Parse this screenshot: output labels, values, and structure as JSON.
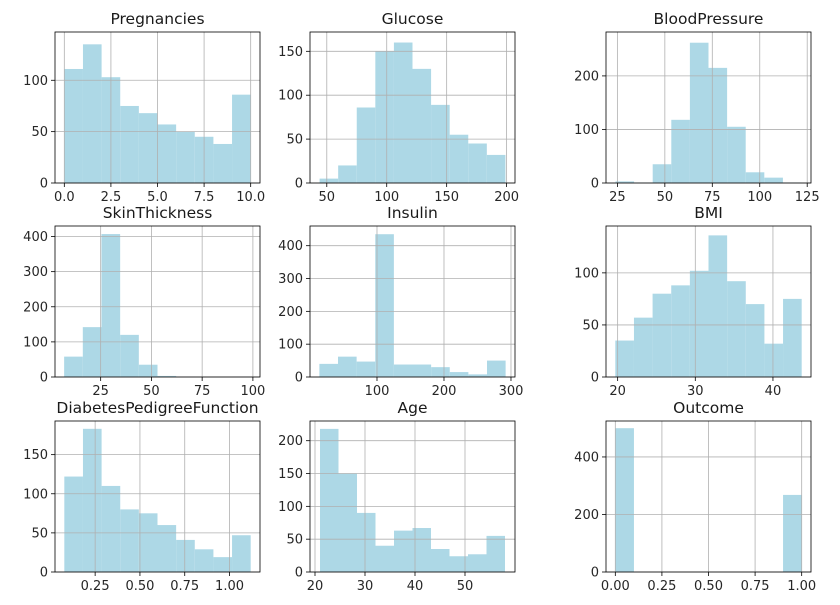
{
  "style": {
    "bar_color": "#add8e6",
    "grid_color": "#b0b0b0",
    "axis_color": "#000000"
  },
  "chart_data": [
    {
      "type": "bar",
      "title": "Pregnancies",
      "grid": true,
      "bins": [
        0,
        1,
        2,
        3,
        4,
        5,
        6,
        7,
        8,
        9,
        10
      ],
      "counts": [
        111,
        135,
        103,
        75,
        68,
        57,
        50,
        45,
        38,
        86
      ],
      "xlim": [
        -0.5,
        10.5
      ],
      "ylim": [
        0,
        147
      ],
      "xticks": [
        0,
        2.5,
        5,
        7.5,
        10
      ],
      "xticklabels": [
        "0.0",
        "2.5",
        "5.0",
        "7.5",
        "10.0"
      ],
      "yticks": [
        0,
        50,
        100
      ],
      "yticklabels": [
        "0",
        "50",
        "100"
      ]
    },
    {
      "type": "bar",
      "title": "Glucose",
      "grid": true,
      "bins": [
        44,
        59.5,
        75,
        90.5,
        106,
        121.5,
        137,
        152.5,
        168,
        183.5,
        199
      ],
      "counts": [
        5,
        20,
        86,
        150,
        160,
        130,
        89,
        55,
        45,
        32
      ],
      "xlim": [
        36,
        207
      ],
      "ylim": [
        0,
        172
      ],
      "xticks": [
        50,
        100,
        150,
        200
      ],
      "xticklabels": [
        "50",
        "100",
        "150",
        "200"
      ],
      "yticks": [
        0,
        50,
        100,
        150
      ],
      "yticklabels": [
        "0",
        "50",
        "100",
        "150"
      ]
    },
    {
      "type": "bar",
      "title": "BloodPressure",
      "grid": true,
      "bins": [
        24,
        33.8,
        43.6,
        53.4,
        63.2,
        73,
        82.8,
        92.6,
        102.4,
        112.2,
        122
      ],
      "counts": [
        3,
        1,
        35,
        118,
        262,
        215,
        105,
        20,
        10,
        1
      ],
      "xlim": [
        19,
        127
      ],
      "ylim": [
        0,
        282
      ],
      "xticks": [
        25,
        50,
        75,
        100,
        125
      ],
      "xticklabels": [
        "25",
        "50",
        "75",
        "100",
        "125"
      ],
      "yticks": [
        0,
        100,
        200
      ],
      "yticklabels": [
        "0",
        "100",
        "200"
      ]
    },
    {
      "type": "bar",
      "title": "SkinThickness",
      "grid": true,
      "bins": [
        7,
        16.2,
        25.4,
        34.6,
        43.8,
        53,
        62.2,
        71.4,
        80.6,
        89.8,
        99
      ],
      "counts": [
        58,
        142,
        407,
        120,
        35,
        3,
        1,
        0,
        0,
        1
      ],
      "xlim": [
        2.5,
        103.5
      ],
      "ylim": [
        0,
        430
      ],
      "xticks": [
        25,
        50,
        75,
        100
      ],
      "xticklabels": [
        "25",
        "50",
        "75",
        "100"
      ],
      "yticks": [
        0,
        100,
        200,
        300,
        400
      ],
      "yticklabels": [
        "0",
        "100",
        "200",
        "300",
        "400"
      ]
    },
    {
      "type": "bar",
      "title": "Insulin",
      "grid": true,
      "bins": [
        14,
        41.8,
        69.6,
        97.4,
        125.2,
        153,
        180.8,
        208.6,
        236.4,
        264.2,
        292
      ],
      "counts": [
        40,
        62,
        47,
        435,
        38,
        38,
        30,
        15,
        8,
        50
      ],
      "xlim": [
        0,
        306
      ],
      "ylim": [
        0,
        460
      ],
      "xticks": [
        100,
        200,
        300
      ],
      "xticklabels": [
        "100",
        "200",
        "300"
      ],
      "yticks": [
        0,
        100,
        200,
        300,
        400
      ],
      "yticklabels": [
        "0",
        "100",
        "200",
        "300",
        "400"
      ]
    },
    {
      "type": "bar",
      "title": "BMI",
      "grid": true,
      "bins": [
        19.7,
        22.1,
        24.5,
        26.9,
        29.3,
        31.7,
        34.1,
        36.5,
        38.9,
        41.3,
        43.7
      ],
      "counts": [
        35,
        57,
        80,
        88,
        102,
        136,
        92,
        70,
        32,
        75
      ],
      "xlim": [
        18.5,
        44.9
      ],
      "ylim": [
        0,
        145
      ],
      "xticks": [
        20,
        30,
        40
      ],
      "xticklabels": [
        "20",
        "30",
        "40"
      ],
      "yticks": [
        0,
        50,
        100
      ],
      "yticklabels": [
        "0",
        "50",
        "100"
      ]
    },
    {
      "type": "bar",
      "title": "DiabetesPedigreeFunction",
      "grid": true,
      "bins": [
        0.078,
        0.182,
        0.286,
        0.39,
        0.494,
        0.598,
        0.702,
        0.806,
        0.91,
        1.014,
        1.118
      ],
      "counts": [
        122,
        183,
        110,
        80,
        75,
        60,
        41,
        29,
        19,
        47
      ],
      "xlim": [
        0.026,
        1.17
      ],
      "ylim": [
        0,
        193
      ],
      "xticks": [
        0.25,
        0.5,
        0.75,
        1.0
      ],
      "xticklabels": [
        "0.25",
        "0.50",
        "0.75",
        "1.00"
      ],
      "yticks": [
        0,
        50,
        100,
        150
      ],
      "yticklabels": [
        "0",
        "50",
        "100",
        "150"
      ]
    },
    {
      "type": "bar",
      "title": "Age",
      "grid": true,
      "bins": [
        21,
        24.7,
        28.4,
        32.1,
        35.8,
        39.5,
        43.2,
        46.9,
        50.6,
        54.3,
        58
      ],
      "counts": [
        218,
        150,
        90,
        40,
        63,
        67,
        35,
        24,
        27,
        55
      ],
      "xlim": [
        19,
        60
      ],
      "ylim": [
        0,
        230
      ],
      "xticks": [
        20,
        30,
        40,
        50
      ],
      "xticklabels": [
        "20",
        "30",
        "40",
        "50"
      ],
      "yticks": [
        0,
        50,
        100,
        150,
        200
      ],
      "yticklabels": [
        "0",
        "50",
        "100",
        "150",
        "200"
      ]
    },
    {
      "type": "bar",
      "title": "Outcome",
      "grid": true,
      "bins": [
        0,
        0.1,
        0.2,
        0.3,
        0.4,
        0.5,
        0.6,
        0.7,
        0.8,
        0.9,
        1.0
      ],
      "counts": [
        500,
        0,
        0,
        0,
        0,
        0,
        0,
        0,
        0,
        268
      ],
      "xlim": [
        -0.05,
        1.05
      ],
      "ylim": [
        0,
        525
      ],
      "xticks": [
        0,
        0.25,
        0.5,
        0.75,
        1.0
      ],
      "xticklabels": [
        "0.00",
        "0.25",
        "0.50",
        "0.75",
        "1.00"
      ],
      "yticks": [
        0,
        200,
        400
      ],
      "yticklabels": [
        "0",
        "200",
        "400"
      ]
    }
  ]
}
